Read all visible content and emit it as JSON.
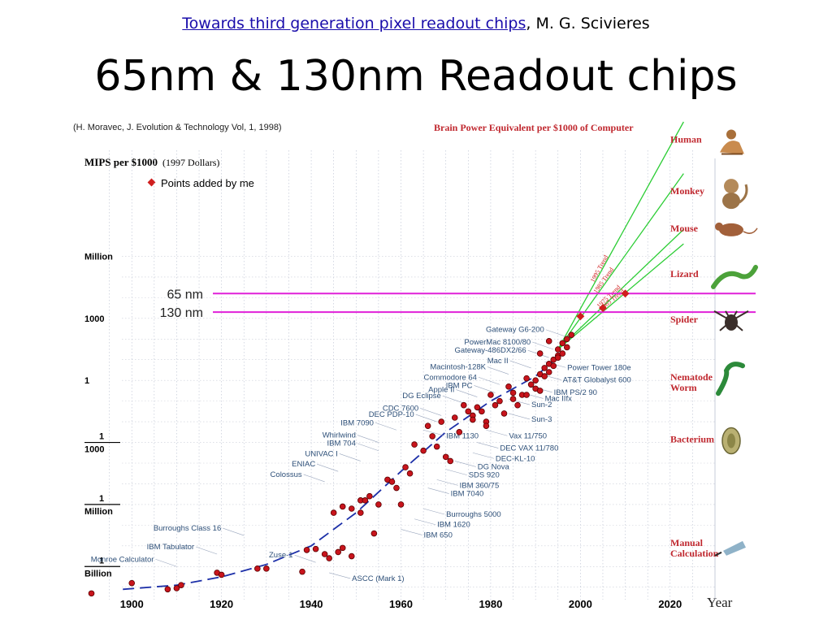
{
  "header": {
    "ref_link": "Towards third generation pixel readout chips",
    "ref_rest": ", M. G. Scivieres",
    "title": "65nm & 130nm Readout chips"
  },
  "chart_data": {
    "type": "scatter",
    "source": "(H. Moravec, J. Evolution & Technology Vol, 1, 1998)",
    "title": "Brain Power Equivalent per $1000 of Computer",
    "ylabel": "MIPS per $1000",
    "ylabel_note": "(1997 Dollars)",
    "xlabel": "Year",
    "xlim": [
      1890,
      2030
    ],
    "y_scale": "log",
    "y_ticks": [
      {
        "log10": 6,
        "label": "Million"
      },
      {
        "log10": 3,
        "label": "1000"
      },
      {
        "log10": 0,
        "label": "1"
      },
      {
        "log10": -3,
        "num": "1",
        "den": "1000"
      },
      {
        "log10": -6,
        "num": "1",
        "den": "Million"
      },
      {
        "log10": -9,
        "num": "1",
        "den": "Billion"
      }
    ],
    "x_ticks": [
      1900,
      1920,
      1940,
      1960,
      1980,
      2000,
      2020
    ],
    "legend": "Points added by me",
    "hlines": [
      {
        "label": "65 nm",
        "y": 4.2,
        "color": "#e020d8"
      },
      {
        "label": "130 nm",
        "y": 3.3,
        "color": "#e020d8"
      }
    ],
    "points": [
      [
        1891,
        -10.3
      ],
      [
        1900,
        -9.8
      ],
      [
        1908,
        -10.1
      ],
      [
        1910,
        -10.05
      ],
      [
        1911,
        -9.9
      ],
      [
        1919,
        -9.3
      ],
      [
        1920,
        -9.4
      ],
      [
        1928,
        -9.1
      ],
      [
        1930,
        -9.1
      ],
      [
        1938,
        -9.25
      ],
      [
        1939,
        -8.2
      ],
      [
        1941,
        -8.15
      ],
      [
        1943,
        -8.4
      ],
      [
        1944,
        -8.6
      ],
      [
        1946,
        -8.3
      ],
      [
        1947,
        -8.1
      ],
      [
        1949,
        -8.5
      ],
      [
        1945,
        -6.4
      ],
      [
        1947,
        -6.1
      ],
      [
        1949,
        -6.2
      ],
      [
        1951,
        -5.8
      ],
      [
        1951,
        -6.4
      ],
      [
        1952,
        -5.8
      ],
      [
        1953,
        -5.6
      ],
      [
        1954,
        -7.4
      ],
      [
        1955,
        -6.0
      ],
      [
        1957,
        -4.8
      ],
      [
        1958,
        -4.9
      ],
      [
        1959,
        -5.2
      ],
      [
        1960,
        -6.0
      ],
      [
        1961,
        -4.2
      ],
      [
        1962,
        -4.5
      ],
      [
        1963,
        -3.1
      ],
      [
        1965,
        -3.4
      ],
      [
        1966,
        -2.2
      ],
      [
        1967,
        -2.7
      ],
      [
        1968,
        -3.2
      ],
      [
        1969,
        -2.0
      ],
      [
        1970,
        -3.7
      ],
      [
        1971,
        -3.9
      ],
      [
        1972,
        -1.8
      ],
      [
        1973,
        -2.5
      ],
      [
        1974,
        -1.2
      ],
      [
        1975,
        -1.5
      ],
      [
        1976,
        -1.7
      ],
      [
        1976,
        -1.9
      ],
      [
        1977,
        -1.3
      ],
      [
        1978,
        -1.5
      ],
      [
        1979,
        -2.0
      ],
      [
        1979,
        -2.2
      ],
      [
        1980,
        -0.7
      ],
      [
        1981,
        -1.2
      ],
      [
        1982,
        -1.0
      ],
      [
        1983,
        -1.6
      ],
      [
        1984,
        -0.3
      ],
      [
        1985,
        -0.6
      ],
      [
        1985,
        -0.9
      ],
      [
        1986,
        -1.2
      ],
      [
        1987,
        -0.7
      ],
      [
        1988,
        0.1
      ],
      [
        1988,
        -0.7
      ],
      [
        1989,
        -0.2
      ],
      [
        1990,
        0.0
      ],
      [
        1990,
        -0.4
      ],
      [
        1991,
        0.3
      ],
      [
        1991,
        -0.5
      ],
      [
        1992,
        0.6
      ],
      [
        1992,
        0.2
      ],
      [
        1993,
        0.8
      ],
      [
        1993,
        0.4
      ],
      [
        1994,
        1.0
      ],
      [
        1994,
        0.7
      ],
      [
        1995,
        1.2
      ],
      [
        1995,
        1.5
      ],
      [
        1996,
        1.3
      ],
      [
        1996,
        1.8
      ],
      [
        1997,
        1.6
      ],
      [
        1997,
        2.0
      ],
      [
        1998,
        2.2
      ],
      [
        1991,
        1.3
      ],
      [
        1993,
        1.9
      ],
      [
        1995,
        1.1
      ]
    ],
    "added_points": [
      [
        2000,
        3.1
      ],
      [
        2005,
        3.5
      ],
      [
        2010,
        4.2
      ]
    ],
    "trends": [
      {
        "label": "1995 Trend",
        "from": [
          1995,
          1.5
        ],
        "to": [
          2023,
          12.5
        ]
      },
      {
        "label": "1985 Trend",
        "from": [
          1995,
          1.5
        ],
        "to": [
          2023,
          10.0
        ]
      },
      {
        "label": "1975 Trend",
        "from": [
          1995,
          1.5
        ],
        "to": [
          2023,
          7.3
        ]
      },
      {
        "label": "1965 Trend",
        "from": [
          1995,
          1.5
        ],
        "to": [
          2023,
          6.6
        ]
      }
    ],
    "machines": [
      {
        "label": "Gateway G6-200",
        "year": 1997,
        "y": 2.1,
        "side": "left"
      },
      {
        "label": "PowerMac 8100/80",
        "year": 1994,
        "y": 1.5,
        "side": "left"
      },
      {
        "label": "Gateway-486DX2/66",
        "year": 1993,
        "y": 1.1,
        "side": "left"
      },
      {
        "label": "Mac II",
        "year": 1989,
        "y": 0.6,
        "side": "left"
      },
      {
        "label": "Macintosh-128K",
        "year": 1984,
        "y": 0.3,
        "side": "left"
      },
      {
        "label": "Commodore 64",
        "year": 1982,
        "y": -0.2,
        "side": "left"
      },
      {
        "label": "IBM PC",
        "year": 1981,
        "y": -0.6,
        "side": "left"
      },
      {
        "label": "Sun-2",
        "year": 1984,
        "y": -0.9,
        "side": "right"
      },
      {
        "label": "Apple II",
        "year": 1977,
        "y": -0.8,
        "side": "left"
      },
      {
        "label": "DG Eclipse",
        "year": 1974,
        "y": -1.1,
        "side": "left"
      },
      {
        "label": "CDC 7600",
        "year": 1969,
        "y": -1.7,
        "side": "left"
      },
      {
        "label": "DEC PDP-10",
        "year": 1968,
        "y": -2.0,
        "side": "left"
      },
      {
        "label": "IBM 7090",
        "year": 1959,
        "y": -2.4,
        "side": "left"
      },
      {
        "label": "IBM 1130",
        "year": 1965,
        "y": -2.4,
        "side": "right"
      },
      {
        "label": "Whirlwind",
        "year": 1955,
        "y": -3.0,
        "side": "left"
      },
      {
        "label": "IBM 704",
        "year": 1955,
        "y": -3.4,
        "side": "left"
      },
      {
        "label": "UNIVAC I",
        "year": 1951,
        "y": -3.9,
        "side": "left"
      },
      {
        "label": "ENIAC",
        "year": 1946,
        "y": -4.4,
        "side": "left"
      },
      {
        "label": "Colossus",
        "year": 1943,
        "y": -4.9,
        "side": "left"
      },
      {
        "label": "Burroughs Class 16",
        "year": 1925,
        "y": -7.5,
        "side": "left"
      },
      {
        "label": "IBM Tabulator",
        "year": 1919,
        "y": -8.4,
        "side": "left"
      },
      {
        "label": "Monroe Calculator",
        "year": 1910,
        "y": -9.0,
        "side": "left"
      },
      {
        "label": "Zuse-1",
        "year": 1941,
        "y": -8.8,
        "side": "left"
      },
      {
        "label": "ASCC (Mark 1)",
        "year": 1944,
        "y": -9.3,
        "side": "right"
      },
      {
        "label": "IBM 650",
        "year": 1960,
        "y": -7.2,
        "side": "right"
      },
      {
        "label": "IBM 1620",
        "year": 1963,
        "y": -6.7,
        "side": "right"
      },
      {
        "label": "Burroughs 5000",
        "year": 1965,
        "y": -6.2,
        "side": "right"
      },
      {
        "label": "IBM 7040",
        "year": 1966,
        "y": -5.2,
        "side": "right"
      },
      {
        "label": "IBM 360/75",
        "year": 1968,
        "y": -4.8,
        "side": "right"
      },
      {
        "label": "SDS 920",
        "year": 1970,
        "y": -4.3,
        "side": "right"
      },
      {
        "label": "DG Nova",
        "year": 1972,
        "y": -3.9,
        "side": "right"
      },
      {
        "label": "DEC-KL-10",
        "year": 1976,
        "y": -3.5,
        "side": "right"
      },
      {
        "label": "DEC VAX 11/780",
        "year": 1977,
        "y": -3.0,
        "side": "right"
      },
      {
        "label": "Vax 11/750",
        "year": 1979,
        "y": -2.4,
        "side": "right"
      },
      {
        "label": "Sun-3",
        "year": 1984,
        "y": -1.6,
        "side": "right"
      },
      {
        "label": "Mac IIfx",
        "year": 1987,
        "y": -0.6,
        "side": "right"
      },
      {
        "label": "IBM PS/2 90",
        "year": 1989,
        "y": -0.3,
        "side": "right"
      },
      {
        "label": "AT&T Globalyst 600",
        "year": 1991,
        "y": 0.3,
        "side": "right"
      },
      {
        "label": "Power Tower 180e",
        "year": 1992,
        "y": 0.9,
        "side": "right"
      }
    ],
    "creatures": [
      {
        "label": "Human",
        "icon": "human-icon",
        "y": 11.5
      },
      {
        "label": "Monkey",
        "icon": "monkey-icon",
        "y": 9.0
      },
      {
        "label": "Mouse",
        "icon": "mouse-icon",
        "y": 7.2
      },
      {
        "label": "Lizard",
        "icon": "lizard-icon",
        "y": 5.0
      },
      {
        "label": "Spider",
        "icon": "spider-icon",
        "y": 2.8
      },
      {
        "label": "Nematode Worm",
        "icon": "worm-icon",
        "y": 0.0
      },
      {
        "label": "Bacterium",
        "icon": "bacterium-icon",
        "y": -3.0
      },
      {
        "label": "Manual Calculation",
        "icon": "writing-hand-icon",
        "y": -8.0
      }
    ]
  }
}
